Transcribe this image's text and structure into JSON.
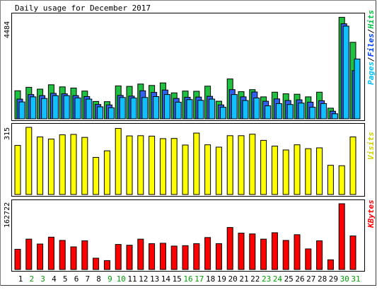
{
  "chart_data": {
    "type": "bar",
    "title": "Daily usage for December 2017",
    "categories": [
      "1",
      "2",
      "3",
      "4",
      "5",
      "6",
      "7",
      "8",
      "9",
      "10",
      "11",
      "12",
      "13",
      "14",
      "15",
      "16",
      "17",
      "18",
      "19",
      "20",
      "21",
      "22",
      "23",
      "24",
      "25",
      "26",
      "27",
      "28",
      "29",
      "30",
      "31"
    ],
    "weekend_days": [
      "2",
      "3",
      "9",
      "10",
      "16",
      "17",
      "23",
      "24",
      "30",
      "31"
    ],
    "panels": [
      {
        "id": "hits",
        "ymax": 4484,
        "ymax_label": "4484",
        "legend": [
          "Pages",
          "Files",
          "Hits"
        ],
        "legend_separator": "/",
        "legend_colors": [
          "#00c0ff",
          "#0040ff",
          "#00c040"
        ],
        "series": [
          {
            "name": "Hits",
            "color": "#20c040",
            "values": [
              1210,
              1360,
              1280,
              1470,
              1380,
              1330,
              1200,
              750,
              740,
              1420,
              1400,
              1500,
              1440,
              1550,
              1120,
              1200,
              1190,
              1410,
              760,
              1720,
              1170,
              1260,
              950,
              1150,
              1080,
              1060,
              950,
              1150,
              460,
              4380,
              3300
            ]
          },
          {
            "name": "Files",
            "color": "#3060f0",
            "values": [
              850,
              1050,
              1000,
              1100,
              1080,
              1000,
              960,
              620,
              600,
              1010,
              980,
              1210,
              1140,
              1240,
              880,
              930,
              940,
              970,
              600,
              1260,
              950,
              1160,
              760,
              860,
              790,
              820,
              720,
              780,
              330,
              4100,
              2080
            ]
          },
          {
            "name": "Pages",
            "color": "#10c0ff",
            "values": [
              730,
              950,
              880,
              1000,
              1000,
              900,
              850,
              520,
              480,
              920,
              900,
              920,
              960,
              1050,
              720,
              830,
              800,
              850,
              500,
              1050,
              790,
              900,
              560,
              660,
              620,
              680,
              500,
              660,
              220,
              4000,
              2580
            ]
          }
        ]
      },
      {
        "id": "visits",
        "ymax": 315,
        "ymax_label": "315",
        "legend": [
          "Visits"
        ],
        "legend_colors": [
          "#d0d000"
        ],
        "series": [
          {
            "name": "Visits",
            "color": "#ffff00",
            "values": [
              230,
              315,
              270,
              260,
              280,
              282,
              268,
              174,
              205,
              310,
              275,
              276,
              274,
              262,
              263,
              232,
              288,
              233,
              222,
              276,
              276,
              283,
              254,
              227,
              209,
              233,
              215,
              219,
              137,
              135,
              270
            ]
          }
        ]
      },
      {
        "id": "kbytes",
        "ymax": 162722,
        "ymax_label": "162722",
        "legend": [
          "KBytes"
        ],
        "legend_colors": [
          "#ff0000"
        ],
        "series": [
          {
            "name": "KBytes",
            "color": "#ff0000",
            "values": [
              50000,
              75000,
              63000,
              80000,
              72000,
              56000,
              71000,
              28000,
              22000,
              62000,
              60000,
              75000,
              64000,
              65000,
              58000,
              59000,
              64000,
              79000,
              64000,
              104000,
              90000,
              88000,
              75000,
              91000,
              72000,
              86000,
              51000,
              71000,
              24000,
              162722,
              83000
            ]
          }
        ]
      }
    ]
  }
}
